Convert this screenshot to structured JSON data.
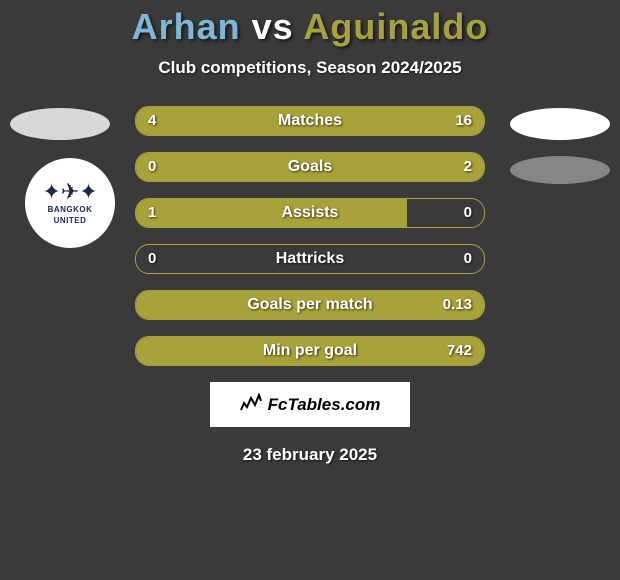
{
  "title": {
    "player1": "Arhan",
    "vs": "vs",
    "player2": "Aguinaldo",
    "color1": "#7db8d8",
    "color_vs": "#ffffff",
    "color2": "#a8a23a"
  },
  "subtitle": "Club competitions, Season 2024/2025",
  "badges": {
    "left_color": "#d8d8d8",
    "right_color": "#ffffff",
    "right2_color": "#868686"
  },
  "club_logo": {
    "line1": "BANGKOK",
    "line2": "UNITED"
  },
  "bars": {
    "border_color": "#a8a23a",
    "fill_color": "#a8a23a",
    "items": [
      {
        "label": "Matches",
        "left": "4",
        "right": "16",
        "left_pct": 20,
        "right_pct": 80
      },
      {
        "label": "Goals",
        "left": "0",
        "right": "2",
        "left_pct": 0,
        "right_pct": 100
      },
      {
        "label": "Assists",
        "left": "1",
        "right": "0",
        "left_pct": 78,
        "right_pct": 0
      },
      {
        "label": "Hattricks",
        "left": "0",
        "right": "0",
        "left_pct": 0,
        "right_pct": 0
      },
      {
        "label": "Goals per match",
        "left": "",
        "right": "0.13",
        "left_pct": 0,
        "right_pct": 100
      },
      {
        "label": "Min per goal",
        "left": "",
        "right": "742",
        "left_pct": 0,
        "right_pct": 100
      }
    ]
  },
  "brand": "FcTables.com",
  "date": "23 february 2025",
  "background": "#3a3a3a"
}
